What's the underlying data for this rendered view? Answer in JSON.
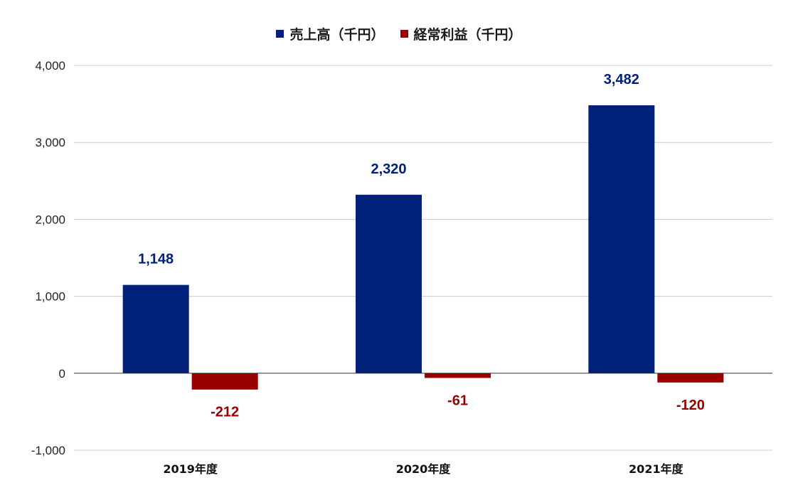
{
  "chart_data": {
    "type": "bar",
    "categories": [
      "2019年度",
      "2020年度",
      "2021年度"
    ],
    "series": [
      {
        "name": "売上高（千円）",
        "values": [
          1148,
          2320,
          3482
        ],
        "color": "#00207a"
      },
      {
        "name": "経常利益（千円）",
        "values": [
          -212,
          -61,
          -120
        ],
        "color": "#990000"
      }
    ],
    "data_labels": [
      [
        "1,148",
        "2,320",
        "3,482"
      ],
      [
        "-212",
        "-61",
        "-120"
      ]
    ],
    "ylim": [
      -1000,
      4000
    ],
    "yticks": [
      4000,
      3000,
      2000,
      1000,
      0,
      -1000
    ],
    "ytick_labels": [
      "4,000",
      "3,000",
      "2,000",
      "1,000",
      "0",
      "-1,000"
    ],
    "grid": true,
    "legend_position": "top-center",
    "title": "",
    "xlabel": "",
    "ylabel": ""
  }
}
